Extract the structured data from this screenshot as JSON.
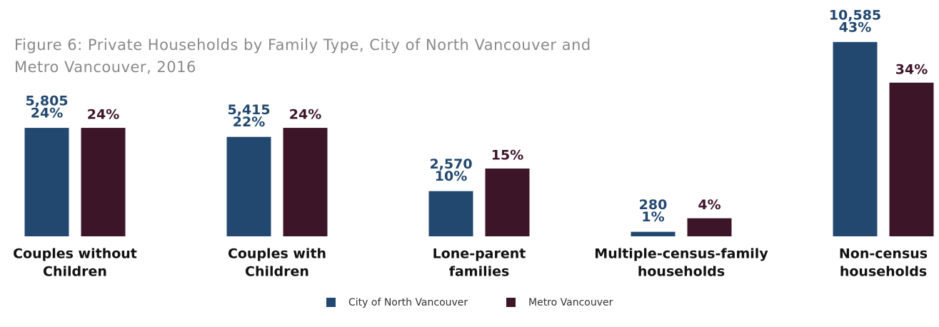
{
  "chart_data": {
    "type": "bar",
    "title": "Figure 6: Private Households by Family Type, City of North Vancouver and Metro Vancouver, 2016",
    "categories": [
      [
        "Couples without",
        "Children"
      ],
      [
        "Couples with",
        "Children"
      ],
      [
        "Lone-parent",
        "families"
      ],
      [
        "Multiple-census-family",
        "households"
      ],
      [
        "Non-census",
        "households"
      ]
    ],
    "series": [
      {
        "name": "City of North Vancouver",
        "color": "#23486f",
        "values": [
          24,
          22,
          10,
          1,
          43
        ],
        "value_labels": [
          "24%",
          "22%",
          "10%",
          "1%",
          "43%"
        ],
        "counts": [
          5805,
          5415,
          2570,
          280,
          10585
        ],
        "count_labels": [
          "5,805",
          "5,415",
          "2,570",
          "280",
          "10,585"
        ]
      },
      {
        "name": "Metro Vancouver",
        "color": "#3d1529",
        "values": [
          24,
          24,
          15,
          4,
          34
        ],
        "value_labels": [
          "24%",
          "24%",
          "15%",
          "4%",
          "34%"
        ]
      }
    ]
  }
}
